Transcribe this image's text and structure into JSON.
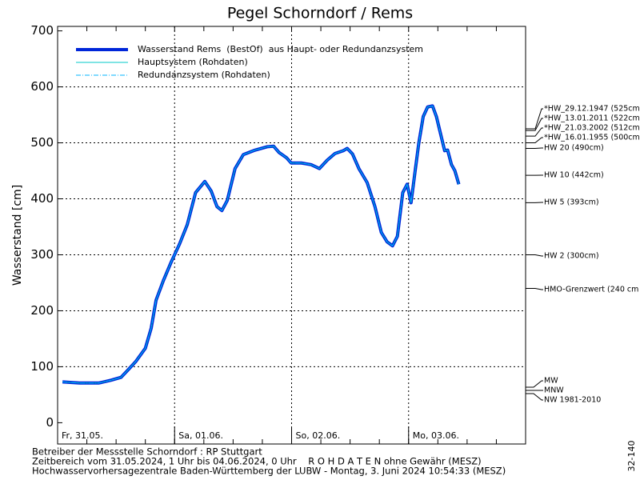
{
  "chart_data": {
    "type": "line",
    "title": "Pegel Schorndorf / Rems",
    "y_label": "Wasserstand [cm]",
    "x": [
      1,
      4.5,
      8.5,
      11,
      13,
      14.3,
      16,
      18,
      19.2,
      20.2,
      21.7,
      23.3,
      25,
      26.6,
      28.3,
      30.2,
      31.5,
      32.7,
      33.7,
      34.8,
      36.4,
      38.1,
      40.5,
      43,
      44.3,
      45.4,
      47,
      47.9,
      50,
      52,
      53.7,
      55.3,
      56.9,
      58.6,
      59.4,
      60.5,
      61.8,
      63.5,
      65.1,
      66.4,
      67.6,
      68.7,
      69.7,
      70.8,
      71.7,
      72.5,
      73.3,
      74.1,
      75,
      75.9,
      76.9,
      77.7,
      78.7,
      79.4,
      80,
      80.8,
      81.5,
      82.3
    ],
    "series": [
      {
        "name": "Wasserstand Rems  (BestOf)  aus Haupt- oder Redundanzsystem",
        "color": "#0026d9",
        "width": 4,
        "dash": "none",
        "values": [
          73,
          71,
          71,
          76,
          81,
          93,
          109,
          133,
          169,
          219,
          254,
          287,
          319,
          354,
          411,
          431,
          414,
          386,
          379,
          397,
          454,
          479,
          487,
          493,
          494,
          483,
          473,
          464,
          464,
          461,
          454,
          469,
          481,
          486,
          490,
          480,
          454,
          429,
          386,
          340,
          323,
          316,
          333,
          411,
          426,
          393,
          447,
          500,
          547,
          564,
          566,
          547,
          511,
          486,
          487,
          461,
          450,
          426
        ]
      },
      {
        "name": "Hauptsystem (Rohdaten)",
        "color": "#00c8c8",
        "width": 1,
        "dash": "none",
        "values": [
          73,
          71,
          71,
          76,
          81,
          93,
          109,
          133,
          169,
          219,
          254,
          287,
          319,
          354,
          411,
          431,
          414,
          386,
          379,
          397,
          454,
          479,
          487,
          493,
          494,
          483,
          473,
          464,
          464,
          461,
          454,
          469,
          481,
          486,
          490,
          480,
          454,
          429,
          386,
          340,
          323,
          316,
          333,
          411,
          426,
          393,
          447,
          500,
          547,
          564,
          566,
          547,
          511,
          486,
          487,
          461,
          450,
          426
        ]
      },
      {
        "name": "Redundanzsystem (Rohdaten)",
        "color": "#00b4ff",
        "width": 1,
        "dash": "6 2 1 2",
        "values": [
          73,
          71,
          71,
          76,
          81,
          93,
          109,
          133,
          169,
          219,
          254,
          287,
          319,
          354,
          411,
          431,
          414,
          386,
          379,
          397,
          454,
          479,
          487,
          493,
          494,
          483,
          473,
          464,
          464,
          461,
          454,
          469,
          481,
          486,
          490,
          480,
          454,
          429,
          386,
          340,
          323,
          316,
          333,
          411,
          426,
          393,
          447,
          500,
          547,
          564,
          566,
          547,
          511,
          486,
          487,
          461,
          450,
          426
        ]
      }
    ],
    "xlim": [
      0,
      96
    ],
    "xticks": [
      {
        "value": 0,
        "label": "Fr, 31.05."
      },
      {
        "value": 24,
        "label": "Sa, 01.06."
      },
      {
        "value": 48,
        "label": "So, 02.06."
      },
      {
        "value": 72,
        "label": "Mo, 03.06."
      }
    ],
    "ylim": [
      -38,
      708
    ],
    "yticks": [
      0,
      100,
      200,
      300,
      400,
      500,
      600,
      700
    ],
    "grid": true,
    "legend": "upper left",
    "reference_lines": [
      {
        "label": "*HW_29.12.1947 (525cm)",
        "value": 525
      },
      {
        "label": "*HW_13.01.2011 (522cm)",
        "value": 522
      },
      {
        "label": "*HW_21.03.2002 (512cm)",
        "value": 512
      },
      {
        "label": "*HW_16.01.1955 (500cm)",
        "value": 500
      },
      {
        "label": "HW 20 (490cm)",
        "value": 490
      },
      {
        "label": "HW 10 (442cm)",
        "value": 442
      },
      {
        "label": "HW 5 (393cm)",
        "value": 393
      },
      {
        "label": "HW 2 (300cm)",
        "value": 300
      },
      {
        "label": "HMO-Grenzwert (240 cm",
        "value": 240
      },
      {
        "label": "MW"
      },
      {
        "label": "MNW"
      },
      {
        "label": "NW 1981-2010"
      }
    ],
    "footer": [
      "Betreiber der Messstelle Schorndorf : RP Stuttgart",
      "Zeitbereich vom 31.05.2024, 1 Uhr bis 04.06.2024, 0 Uhr    R O H D A T E N ohne Gewähr (MESZ)",
      "Hochwasservorhersagezentrale Baden-Württemberg der LUBW - Montag, 3. Juni 2024 10:54:33 (MESZ)"
    ],
    "side_note": "32-140"
  }
}
